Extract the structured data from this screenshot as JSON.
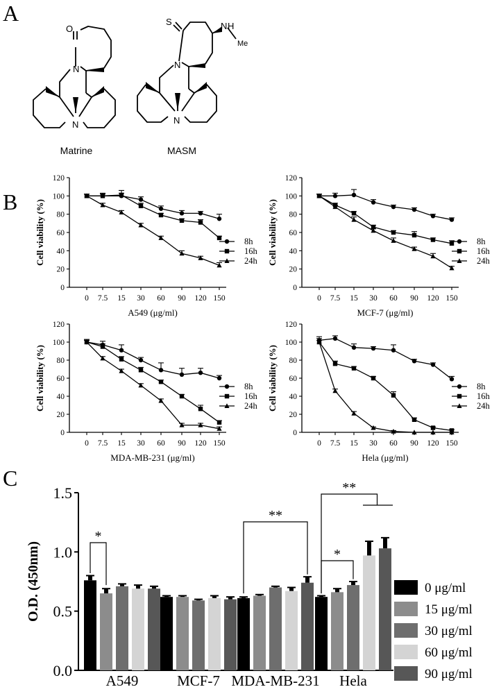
{
  "panels": {
    "a": {
      "letter": "A",
      "molecules": [
        {
          "name": "Matrine",
          "atoms": {
            "o": "O",
            "n_top": "N",
            "n_bot": "N"
          }
        },
        {
          "name": "MASM",
          "atoms": {
            "s": "S",
            "n_top": "N",
            "n_bot": "N",
            "nh": "N",
            "h": "H",
            "me": "Me"
          }
        }
      ]
    },
    "b": {
      "letter": "B"
    },
    "c": {
      "letter": "C"
    }
  },
  "chart_data": [
    {
      "type": "line",
      "panel": "B",
      "xlabel": "A549 (μg/ml)",
      "ylabel": "Cell viability (%)",
      "categories": [
        "0",
        "7.5",
        "15",
        "30",
        "60",
        "90",
        "120",
        "150"
      ],
      "yticks": [
        "0",
        "20",
        "40",
        "60",
        "80",
        "100",
        "120"
      ],
      "ylim": [
        0,
        120
      ],
      "legend_position": "right",
      "series": [
        {
          "name": "8h",
          "marker": "circle",
          "values": [
            100,
            100,
            100,
            96,
            86,
            81,
            81,
            75
          ],
          "errors": [
            2,
            2,
            3,
            3,
            3,
            3,
            2,
            5
          ]
        },
        {
          "name": "16h",
          "marker": "square",
          "values": [
            100,
            100,
            101,
            89,
            79,
            73,
            71,
            54
          ],
          "errors": [
            2,
            3,
            5,
            3,
            2,
            2,
            3,
            2
          ]
        },
        {
          "name": "24h",
          "marker": "triangle",
          "values": [
            100,
            90,
            82,
            68,
            54,
            37,
            32,
            24
          ],
          "errors": [
            2,
            2,
            2,
            2,
            2,
            3,
            2,
            3
          ]
        }
      ]
    },
    {
      "type": "line",
      "panel": "B",
      "xlabel": "MCF-7 (μg/ml)",
      "ylabel": "Cell viability (%)",
      "categories": [
        "0",
        "7.5",
        "15",
        "30",
        "60",
        "90",
        "120",
        "150"
      ],
      "yticks": [
        "0",
        "20",
        "40",
        "60",
        "80",
        "100",
        "120"
      ],
      "ylim": [
        0,
        120
      ],
      "legend_position": "right",
      "series": [
        {
          "name": "8h",
          "marker": "circle",
          "values": [
            100,
            100,
            101,
            93,
            88,
            85,
            78,
            74
          ],
          "errors": [
            2,
            3,
            6,
            3,
            2,
            2,
            2,
            2
          ]
        },
        {
          "name": "16h",
          "marker": "square",
          "values": [
            100,
            90,
            81,
            66,
            60,
            57,
            52,
            48
          ],
          "errors": [
            2,
            2,
            2,
            2,
            2,
            4,
            2,
            3
          ]
        },
        {
          "name": "24h",
          "marker": "triangle",
          "values": [
            100,
            88,
            74,
            62,
            51,
            42,
            34,
            21
          ],
          "errors": [
            2,
            2,
            3,
            2,
            3,
            2,
            3,
            2
          ]
        }
      ]
    },
    {
      "type": "line",
      "panel": "B",
      "xlabel": "MDA-MB-231 (μg/ml)",
      "ylabel": "Cell viability (%)",
      "categories": [
        "0",
        "7.5",
        "15",
        "30",
        "60",
        "90",
        "120",
        "150"
      ],
      "yticks": [
        "0",
        "20",
        "40",
        "60",
        "80",
        "100",
        "120"
      ],
      "ylim": [
        0,
        120
      ],
      "legend_position": "right",
      "series": [
        {
          "name": "8h",
          "marker": "circle",
          "values": [
            100,
            97,
            91,
            80,
            69,
            64,
            66,
            60
          ],
          "errors": [
            3,
            4,
            6,
            3,
            8,
            7,
            5,
            3
          ]
        },
        {
          "name": "16h",
          "marker": "square",
          "values": [
            100,
            95,
            81,
            69,
            56,
            40,
            26,
            11
          ],
          "errors": [
            2,
            3,
            3,
            3,
            2,
            2,
            4,
            2
          ]
        },
        {
          "name": "24h",
          "marker": "triangle",
          "values": [
            100,
            82,
            68,
            52,
            35,
            8,
            8,
            4
          ],
          "errors": [
            2,
            2,
            2,
            2,
            2,
            2,
            2,
            2
          ]
        }
      ]
    },
    {
      "type": "line",
      "panel": "B",
      "xlabel": "Hela (μg/ml)",
      "ylabel": "Cell viability (%)",
      "categories": [
        "0",
        "7.5",
        "15",
        "30",
        "60",
        "90",
        "120",
        "150"
      ],
      "yticks": [
        "0",
        "20",
        "40",
        "60",
        "80",
        "100",
        "120"
      ],
      "ylim": [
        0,
        120
      ],
      "legend_position": "right",
      "series": [
        {
          "name": "8h",
          "marker": "circle",
          "values": [
            102,
            104,
            94,
            93,
            91,
            79,
            75,
            59
          ],
          "errors": [
            4,
            3,
            4,
            2,
            6,
            2,
            2,
            3
          ]
        },
        {
          "name": "16h",
          "marker": "square",
          "values": [
            100,
            76,
            71,
            60,
            41,
            14,
            5,
            2
          ],
          "errors": [
            4,
            3,
            2,
            2,
            4,
            2,
            1,
            1
          ]
        },
        {
          "name": "24h",
          "marker": "triangle",
          "values": [
            100,
            46,
            21,
            5,
            1,
            0,
            0,
            0
          ],
          "errors": [
            2,
            2,
            2,
            1,
            1,
            0,
            0,
            0
          ]
        }
      ]
    },
    {
      "type": "bar",
      "panel": "C",
      "ylabel": "O.D. (450nm)",
      "categories": [
        "A549",
        "MCF-7",
        "MDA-MB-231",
        "Hela"
      ],
      "ylim": [
        0,
        1.5
      ],
      "yticks": [
        "0.0",
        "0.5",
        "1.0",
        "1.5"
      ],
      "legend_position": "right",
      "series": [
        {
          "name": "0 μg/ml",
          "color": "#000000",
          "values": [
            0.76,
            0.62,
            0.61,
            0.62
          ],
          "errors": [
            0.04,
            0.01,
            0.01,
            0.01
          ]
        },
        {
          "name": "15 μg/ml",
          "color": "#8c8c8c",
          "values": [
            0.65,
            0.62,
            0.63,
            0.66
          ],
          "errors": [
            0.04,
            0.01,
            0.01,
            0.03
          ]
        },
        {
          "name": "30 μg/ml",
          "color": "#6e6e6e",
          "values": [
            0.71,
            0.59,
            0.7,
            0.72
          ],
          "errors": [
            0.02,
            0.01,
            0.01,
            0.03
          ]
        },
        {
          "name": "60 μg/ml",
          "color": "#d4d4d4",
          "values": [
            0.69,
            0.61,
            0.67,
            0.97
          ],
          "errors": [
            0.03,
            0.02,
            0.03,
            0.12
          ]
        },
        {
          "name": "90 μg/ml",
          "color": "#575757",
          "values": [
            0.69,
            0.6,
            0.74,
            1.03
          ],
          "errors": [
            0.02,
            0.02,
            0.05,
            0.09
          ]
        }
      ],
      "annotations": [
        {
          "label": "*",
          "group": "A549",
          "from_series": 0,
          "to_series": 1
        },
        {
          "label": "**",
          "group": "MDA-MB-231",
          "from_series": 0,
          "to_series": 4
        },
        {
          "label": "*",
          "group": "Hela",
          "from_series": 0,
          "to_series": 2
        },
        {
          "label": "**",
          "group": "Hela",
          "from_series": 0,
          "to_series": "3-4"
        }
      ]
    }
  ]
}
